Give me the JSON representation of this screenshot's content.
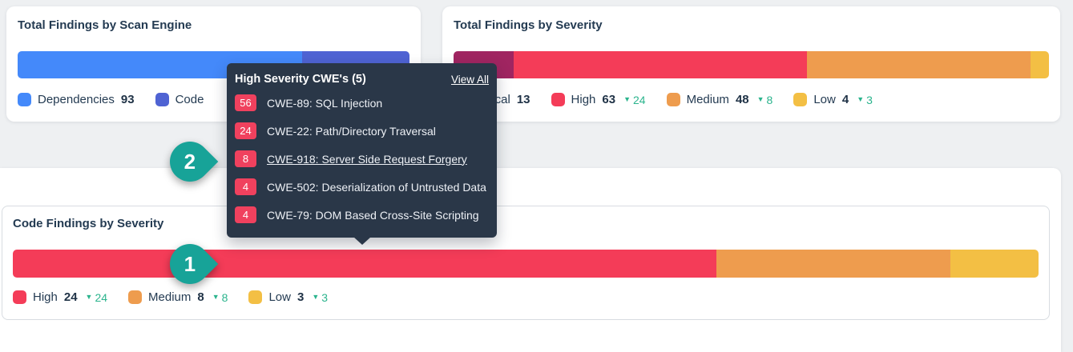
{
  "page": {
    "background": "#eef0f2"
  },
  "cards": {
    "scan_engine": {
      "title": "Total Findings by Scan Engine",
      "legend": [
        {
          "label": "Dependencies",
          "value": "93"
        },
        {
          "label": "Code",
          "value": ""
        }
      ]
    },
    "severity": {
      "title": "Total Findings by Severity",
      "legend": [
        {
          "label": "Critical",
          "value": "13"
        },
        {
          "label": "High",
          "value": "63",
          "delta": "24"
        },
        {
          "label": "Medium",
          "value": "48",
          "delta": "8"
        },
        {
          "label": "Low",
          "value": "4",
          "delta": "3"
        }
      ]
    },
    "code_severity": {
      "title": "Code Findings by Severity",
      "legend": [
        {
          "label": "High",
          "value": "24",
          "delta": "24"
        },
        {
          "label": "Medium",
          "value": "8",
          "delta": "8"
        },
        {
          "label": "Low",
          "value": "3",
          "delta": "3"
        }
      ]
    }
  },
  "tooltip": {
    "title": "High Severity CWE's (5)",
    "view_all_label": "View All",
    "items": [
      {
        "count": "56",
        "label": "CWE-89: SQL Injection"
      },
      {
        "count": "24",
        "label": "CWE-22: Path/Directory Traversal"
      },
      {
        "count": "8",
        "label": "CWE-918: Server Side Request Forgery"
      },
      {
        "count": "4",
        "label": "CWE-502: Deserialization of Untrusted Data"
      },
      {
        "count": "4",
        "label": "CWE-79: DOM Based Cross-Site Scripting"
      }
    ],
    "colors": {
      "background": "#2a3748",
      "badge": "#f0415e"
    }
  },
  "annotations": {
    "step_two": "2",
    "step_one": "1",
    "color": "#17a398"
  },
  "colors": {
    "delta_teal": "#2bb48d",
    "text_navy": "#243b52"
  },
  "chart_data": [
    {
      "type": "bar",
      "title": "Total Findings by Scan Engine",
      "orientation": "horizontal_stacked",
      "series": [
        {
          "name": "Dependencies",
          "value": 93,
          "color": "#4489fa"
        },
        {
          "name": "Code",
          "value": 35,
          "color": "#4f63d3"
        }
      ]
    },
    {
      "type": "bar",
      "title": "Total Findings by Severity",
      "orientation": "horizontal_stacked",
      "series": [
        {
          "name": "Critical",
          "value": 13,
          "color": "#a02561"
        },
        {
          "name": "High",
          "value": 63,
          "color": "#f43c58"
        },
        {
          "name": "Medium",
          "value": 48,
          "color": "#ee9c4e"
        },
        {
          "name": "Low",
          "value": 4,
          "color": "#f3bf44"
        }
      ]
    },
    {
      "type": "bar",
      "title": "Code Findings by Severity",
      "orientation": "horizontal_stacked",
      "series": [
        {
          "name": "High",
          "value": 24,
          "color": "#f43c58"
        },
        {
          "name": "Medium",
          "value": 8,
          "color": "#ee9c4e"
        },
        {
          "name": "Low",
          "value": 3,
          "color": "#f3bf44"
        }
      ]
    }
  ]
}
